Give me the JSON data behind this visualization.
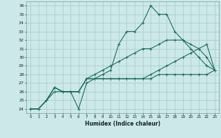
{
  "xlabel": "Humidex (Indice chaleur)",
  "bg_color": "#cce8e8",
  "grid_color": "#aacece",
  "line_color": "#1a6b5a",
  "xlim": [
    -0.5,
    23.5
  ],
  "ylim": [
    23.5,
    36.5
  ],
  "xticks": [
    0,
    1,
    2,
    3,
    4,
    5,
    6,
    7,
    8,
    9,
    10,
    11,
    12,
    13,
    14,
    15,
    16,
    17,
    18,
    19,
    20,
    21,
    22,
    23
  ],
  "yticks": [
    24,
    25,
    26,
    27,
    28,
    29,
    30,
    31,
    32,
    33,
    34,
    35,
    36
  ],
  "series": [
    [
      24,
      24,
      25,
      26,
      26,
      26,
      24,
      27,
      27.5,
      28,
      28.5,
      31.5,
      33,
      33,
      34,
      36,
      35,
      35,
      33,
      32,
      31,
      30,
      29,
      28.5
    ],
    [
      24,
      24,
      25,
      26.5,
      26,
      26,
      26,
      27.5,
      28,
      28.5,
      29,
      29.5,
      30,
      30.5,
      31,
      31,
      31.5,
      32,
      32,
      32,
      31.5,
      31,
      30,
      28.5
    ],
    [
      24,
      24,
      25,
      26.5,
      26,
      26,
      26,
      27.5,
      27.5,
      27.5,
      27.5,
      27.5,
      27.5,
      27.5,
      27.5,
      27.5,
      28,
      28,
      28,
      28,
      28,
      28,
      28,
      28.5
    ],
    [
      24,
      24,
      25,
      26.5,
      26,
      26,
      26,
      27.5,
      27.5,
      27.5,
      27.5,
      27.5,
      27.5,
      27.5,
      27.5,
      28,
      28.5,
      29,
      29.5,
      30,
      30.5,
      31,
      31.5,
      28.5
    ]
  ]
}
